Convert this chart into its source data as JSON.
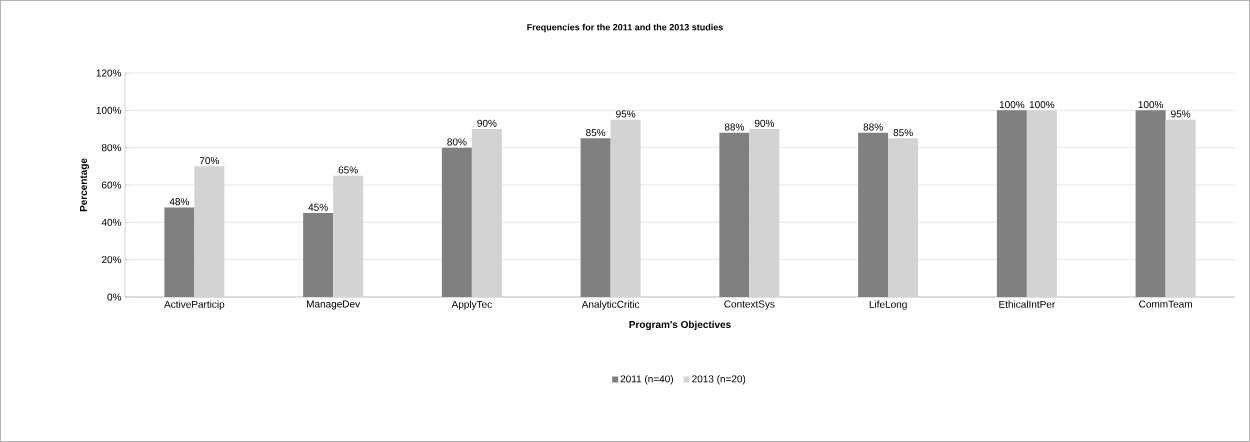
{
  "chart_data": {
    "type": "bar",
    "title": "Frequencies for the 2011 and the 2013 studies",
    "xlabel": "Program's Objectives",
    "ylabel": "Percentage",
    "categories": [
      "ActiveParticip",
      "ManageDev",
      "ApplyTec",
      "AnalyticCritic",
      "ContextSys",
      "LifeLong",
      "EthicalIntPer",
      "CommTeam"
    ],
    "series": [
      {
        "name": "2011 (n=40)",
        "color": "#808080",
        "values": [
          48,
          45,
          80,
          85,
          88,
          88,
          100,
          100
        ],
        "value_labels": [
          "48%",
          "45%",
          "80%",
          "85%",
          "88%",
          "88%",
          "100%",
          "100%"
        ]
      },
      {
        "name": "2013 (n=20)",
        "color": "#d3d3d3",
        "values": [
          70,
          65,
          90,
          95,
          90,
          85,
          100,
          95
        ],
        "value_labels": [
          "70%",
          "65%",
          "90%",
          "95%",
          "90%",
          "85%",
          "100%",
          "95%"
        ]
      }
    ],
    "ylim": [
      0,
      120
    ],
    "yticks": [
      {
        "value": 0,
        "label": "0%"
      },
      {
        "value": 20,
        "label": "20%"
      },
      {
        "value": 40,
        "label": "40%"
      },
      {
        "value": 60,
        "label": "60%"
      },
      {
        "value": 80,
        "label": "80%"
      },
      {
        "value": 100,
        "label": "100%"
      },
      {
        "value": 120,
        "label": "120%"
      }
    ],
    "grid": "y",
    "legend": "bottom"
  }
}
